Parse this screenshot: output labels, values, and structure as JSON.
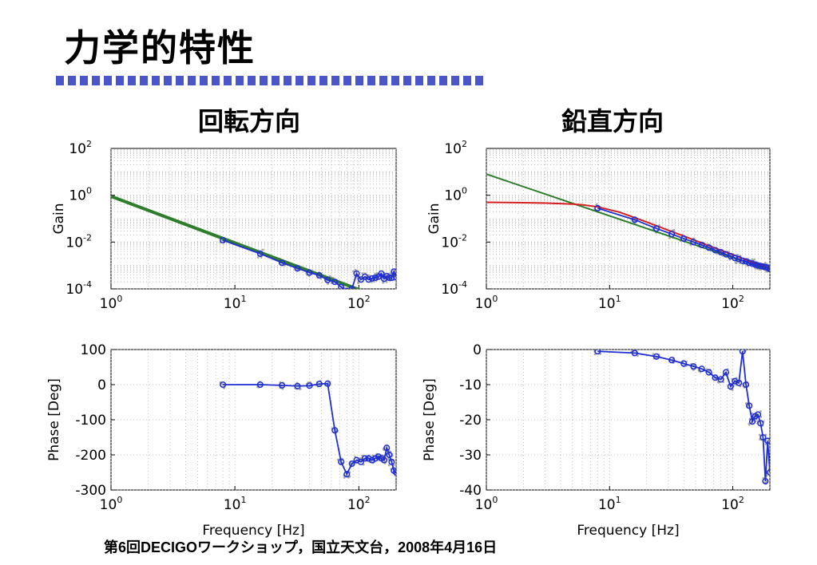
{
  "slide": {
    "title": "力学的特性",
    "footer": "第6回DECIGOワークショップ，国立天文台，2008年4月16日"
  },
  "headings": {
    "left": "回転方向",
    "right": "鉛直方向"
  },
  "colors": {
    "measured": "#1f2fd0",
    "scatter": "#a8a8a8",
    "fit_green": "#2d7d2d",
    "fit_red": "#d42020",
    "title_rule": "#4a55c8"
  },
  "chart_data": [
    {
      "id": "rotation-gain",
      "type": "line",
      "scale": "log-log",
      "ylabel": "Gain",
      "xlabel": "",
      "xlim": [
        1,
        200
      ],
      "ylim": [
        0.0001,
        100
      ],
      "xticks": [
        1,
        10,
        100
      ],
      "yticks": [
        0.0001,
        0.01,
        1,
        100
      ],
      "grid": true,
      "series": [
        {
          "x": [
            8,
            16,
            24,
            32,
            40,
            48,
            56,
            64,
            72,
            80,
            88,
            96,
            104,
            112,
            120,
            128,
            136,
            144,
            152,
            160,
            168,
            176,
            184,
            192,
            200
          ],
          "y": [
            0.012,
            0.0032,
            0.0013,
            0.00075,
            0.0005,
            0.00038,
            0.00024,
            0.0002,
            0.00012,
            8e-05,
            0.0001,
            0.00045,
            0.00025,
            0.00033,
            0.00025,
            0.00028,
            0.0003,
            0.00033,
            0.00045,
            0.00027,
            0.00035,
            0.0003,
            0.0003,
            0.00055,
            0.00032
          ]
        },
        {
          "x": [
            1,
            200
          ],
          "y": [
            0.9,
            2.35e-05
          ]
        }
      ]
    },
    {
      "id": "vertical-gain",
      "type": "line",
      "scale": "log-log",
      "ylabel": "Gain",
      "xlabel": "",
      "xlim": [
        1,
        200
      ],
      "ylim": [
        0.0001,
        100
      ],
      "xticks": [
        1,
        10,
        100
      ],
      "yticks": [
        0.0001,
        0.01,
        1,
        100
      ],
      "grid": true,
      "series": [
        {
          "x": [
            8,
            16,
            24,
            32,
            40,
            48,
            56,
            64,
            72,
            80,
            88,
            96,
            104,
            112,
            120,
            128,
            136,
            144,
            152,
            160,
            168,
            176,
            184,
            192,
            200
          ],
          "y": [
            0.28,
            0.09,
            0.038,
            0.022,
            0.014,
            0.01,
            0.0075,
            0.0058,
            0.0045,
            0.0037,
            0.003,
            0.0025,
            0.0021,
            0.0019,
            0.0016,
            0.0015,
            0.0013,
            0.0012,
            0.0011,
            0.001,
            0.00095,
            0.0009,
            0.00085,
            0.0008,
            0.0007
          ]
        },
        {
          "x": [
            1,
            200
          ],
          "y": [
            8,
            0.000625
          ]
        },
        {
          "x": [
            1,
            2,
            3,
            4,
            5,
            6,
            8,
            10,
            12,
            15,
            20,
            30,
            40,
            60,
            80,
            100,
            140,
            200
          ],
          "y": [
            0.5,
            0.48,
            0.46,
            0.44,
            0.42,
            0.39,
            0.32,
            0.24,
            0.19,
            0.125,
            0.072,
            0.032,
            0.018,
            0.008,
            0.0045,
            0.0029,
            0.0015,
            0.00075
          ]
        }
      ]
    },
    {
      "id": "rotation-phase",
      "type": "line",
      "scale": "semilog-x",
      "ylabel": "Phase [Deg]",
      "xlabel": "Frequency [Hz]",
      "xlim": [
        1,
        200
      ],
      "ylim": [
        -300,
        100
      ],
      "xticks": [
        1,
        10,
        100
      ],
      "yticks": [
        -300,
        -200,
        -100,
        0,
        100
      ],
      "grid": true,
      "series": [
        {
          "x": [
            8,
            16,
            24,
            32,
            40,
            48,
            56,
            64,
            72,
            80,
            88,
            96,
            104,
            112,
            120,
            128,
            136,
            144,
            152,
            160,
            168,
            176,
            184,
            192,
            200
          ],
          "y": [
            0,
            0,
            -2,
            -4,
            -3,
            2,
            3,
            -130,
            -220,
            -255,
            -225,
            -215,
            -220,
            -210,
            -210,
            -215,
            -210,
            -205,
            -210,
            -215,
            -180,
            -200,
            -220,
            -245,
            -250
          ]
        }
      ]
    },
    {
      "id": "vertical-phase",
      "type": "line",
      "scale": "semilog-x",
      "ylabel": "Phase [Deg]",
      "xlabel": "Frequency [Hz]",
      "xlim": [
        1,
        200
      ],
      "ylim": [
        -40,
        0
      ],
      "xticks": [
        1,
        10,
        100
      ],
      "yticks": [
        -40,
        -30,
        -20,
        -10,
        0
      ],
      "grid": true,
      "series": [
        {
          "x": [
            8,
            16,
            24,
            32,
            40,
            48,
            56,
            64,
            72,
            80,
            88,
            96,
            104,
            112,
            120,
            128,
            136,
            144,
            152,
            160,
            168,
            176,
            184,
            192,
            200
          ],
          "y": [
            -0.5,
            -1,
            -2,
            -3,
            -4,
            -4.8,
            -5.5,
            -6.5,
            -8,
            -8.5,
            -6.5,
            -10.5,
            -9,
            -9.5,
            -0.5,
            -10,
            -16,
            -20.5,
            -19,
            -18.5,
            -21,
            -25,
            -37.5,
            -26,
            -35
          ]
        }
      ]
    }
  ]
}
